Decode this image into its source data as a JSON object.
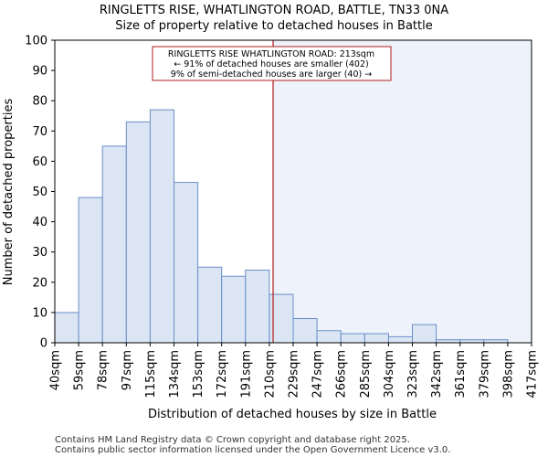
{
  "chart_data": {
    "type": "bar",
    "title": "RINGLETTS RISE, WHATLINGTON ROAD, BATTLE, TN33 0NA",
    "subtitle": "Size of property relative to detached houses in Battle",
    "xlabel": "Distribution of detached houses by size in Battle",
    "ylabel": "Number of detached properties",
    "ylim": [
      0,
      100
    ],
    "yticks": [
      0,
      10,
      20,
      30,
      40,
      50,
      60,
      70,
      80,
      90,
      100
    ],
    "bin_edges": [
      40,
      59,
      78,
      97,
      115,
      134,
      153,
      172,
      191,
      210,
      229,
      247,
      266,
      285,
      304,
      323,
      342,
      361,
      379,
      398,
      417
    ],
    "tick_labels": [
      "40sqm",
      "59sqm",
      "78sqm",
      "97sqm",
      "115sqm",
      "134sqm",
      "153sqm",
      "172sqm",
      "191sqm",
      "210sqm",
      "229sqm",
      "247sqm",
      "266sqm",
      "285sqm",
      "304sqm",
      "323sqm",
      "342sqm",
      "361sqm",
      "379sqm",
      "398sqm",
      "417sqm"
    ],
    "values": [
      10,
      48,
      65,
      73,
      77,
      53,
      25,
      22,
      24,
      16,
      8,
      4,
      3,
      3,
      2,
      6,
      1,
      1,
      1,
      0
    ],
    "marker": {
      "value": 213,
      "line1": "RINGLETTS RISE WHATLINGTON ROAD: 213sqm",
      "line2": "← 91% of detached houses are smaller (402)",
      "line3": "9% of semi-detached houses are larger (40) →"
    },
    "colors": {
      "bar_fill": "#dbe5f4",
      "bar_edge": "#6a8fc7",
      "marker": "#b01c1c",
      "highlight": "#eef2fb"
    }
  },
  "footer": {
    "line1": "Contains HM Land Registry data © Crown copyright and database right 2025.",
    "line2": "Contains public sector information licensed under the Open Government Licence v3.0."
  }
}
